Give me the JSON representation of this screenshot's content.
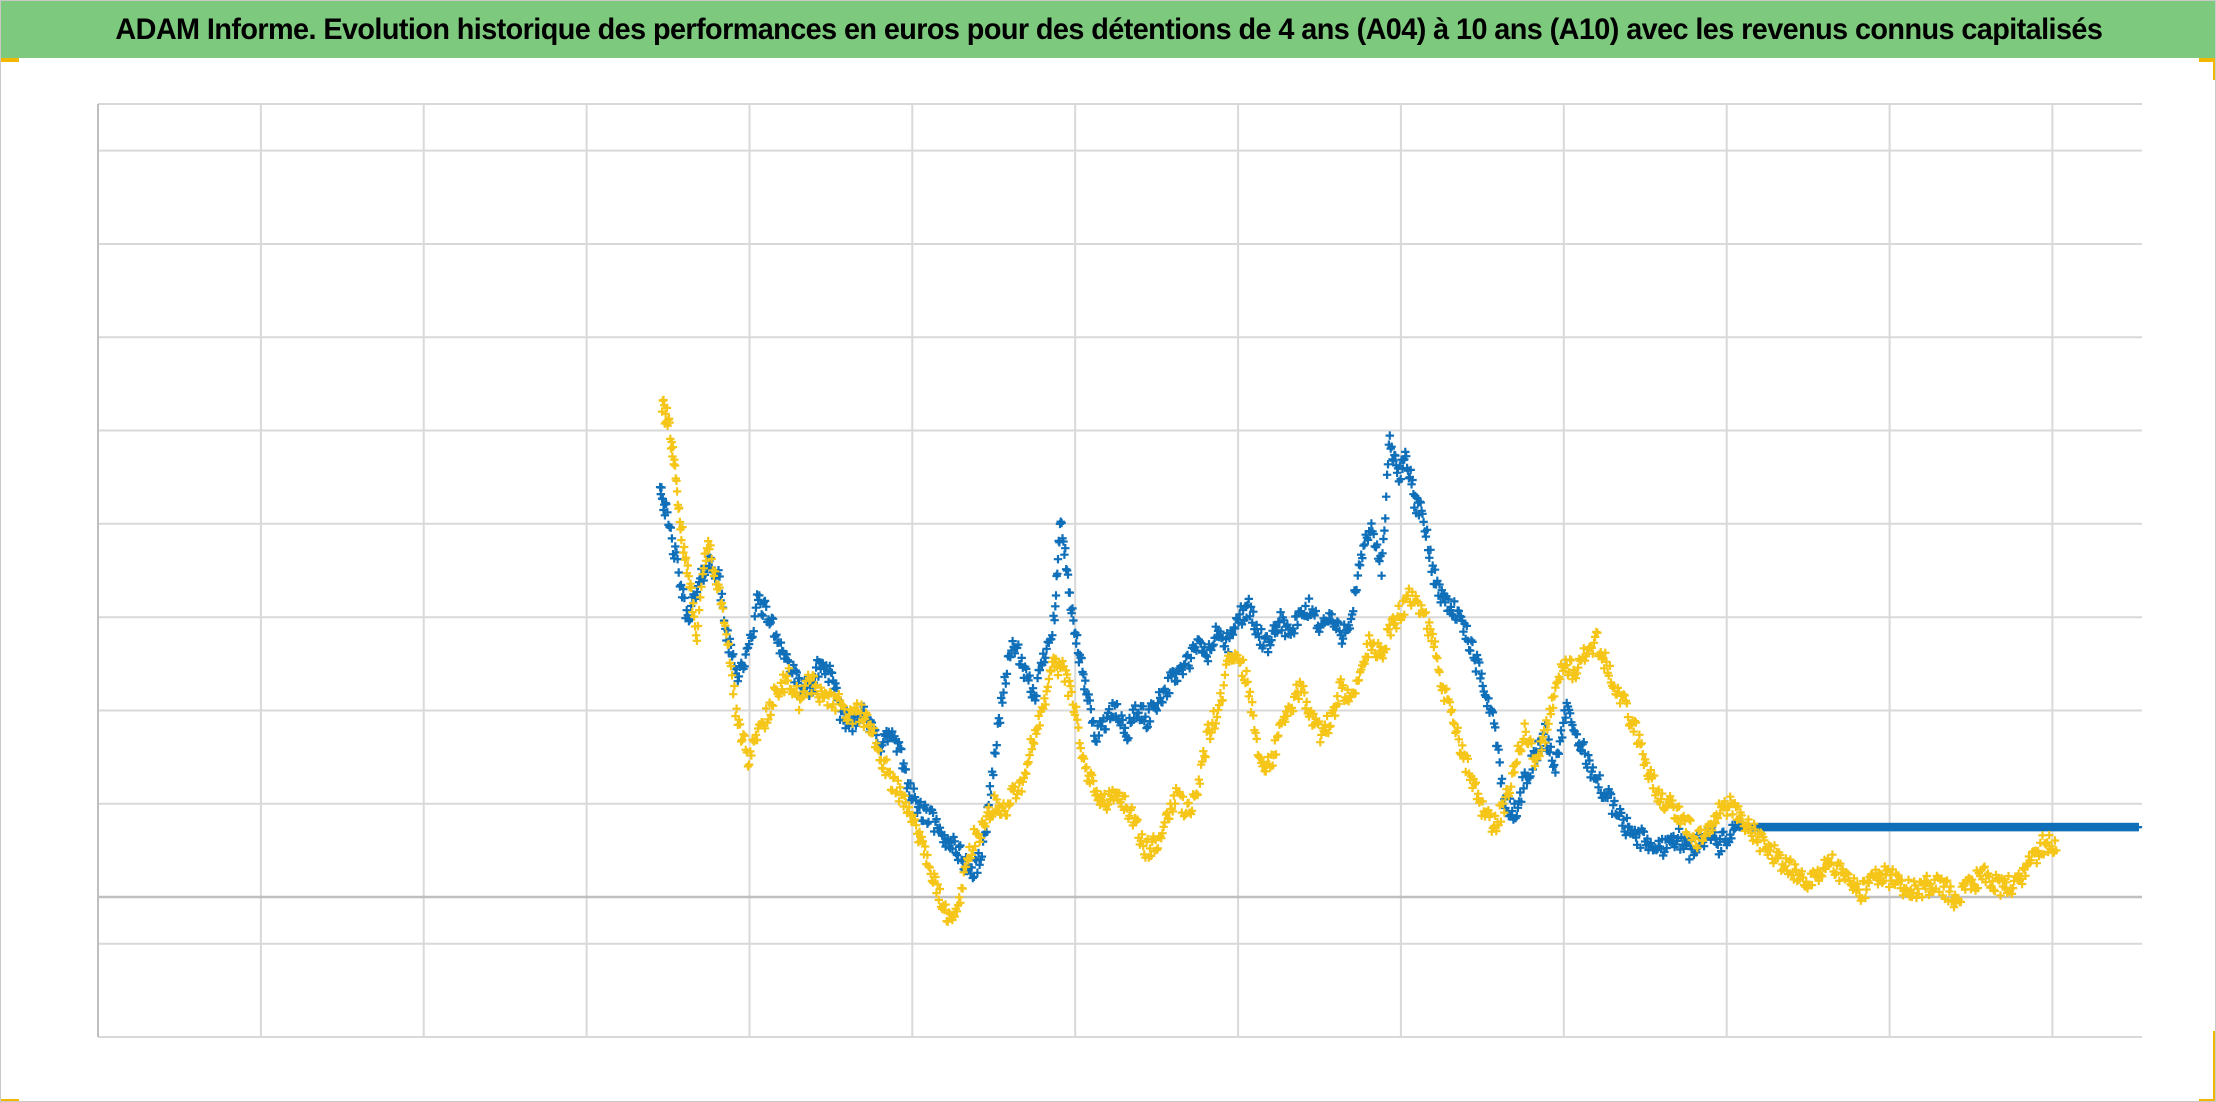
{
  "header": {
    "title": "ADAM Informe. Evolution historique des performances en euros pour des détentions de 4 ans (A04) à 10 ans (A10) avec les revenus connus capitalisés"
  },
  "colors": {
    "title_background": "#7dc97d",
    "accent_corners": "#f2b800",
    "grid": "#d9d9d9",
    "zero_line": "#bfbfbf",
    "series_a04": "#0f6fb8",
    "series_a10": "#f5c518"
  },
  "chart_data": {
    "type": "scatter",
    "title": "",
    "xlabel": "",
    "ylabel": "",
    "xlim": [
      0,
      100
    ],
    "ylim": [
      -0.3,
      1.7
    ],
    "grid": true,
    "marker": "plus",
    "tick_labels_visible": false,
    "series": [
      {
        "key": "a04",
        "color": "#0f6fb8",
        "points": [
          [
            27.5,
            0.89
          ],
          [
            27.8,
            0.82
          ],
          [
            28.3,
            0.72
          ],
          [
            28.8,
            0.6
          ],
          [
            29.3,
            0.65
          ],
          [
            29.8,
            0.72
          ],
          [
            30.3,
            0.7
          ],
          [
            30.8,
            0.55
          ],
          [
            31.3,
            0.48
          ],
          [
            31.8,
            0.52
          ],
          [
            32.3,
            0.64
          ],
          [
            32.8,
            0.6
          ],
          [
            33.3,
            0.55
          ],
          [
            33.8,
            0.5
          ],
          [
            34.3,
            0.45
          ],
          [
            34.8,
            0.44
          ],
          [
            35.3,
            0.5
          ],
          [
            35.8,
            0.48
          ],
          [
            36.3,
            0.4
          ],
          [
            36.8,
            0.37
          ],
          [
            37.3,
            0.4
          ],
          [
            37.8,
            0.36
          ],
          [
            38.3,
            0.33
          ],
          [
            38.8,
            0.35
          ],
          [
            39.3,
            0.3
          ],
          [
            39.8,
            0.22
          ],
          [
            40.3,
            0.18
          ],
          [
            40.8,
            0.17
          ],
          [
            41.3,
            0.12
          ],
          [
            41.8,
            0.12
          ],
          [
            42.3,
            0.08
          ],
          [
            42.8,
            0.05
          ],
          [
            43.3,
            0.1
          ],
          [
            43.8,
            0.28
          ],
          [
            44.3,
            0.45
          ],
          [
            44.8,
            0.55
          ],
          [
            45.3,
            0.48
          ],
          [
            45.8,
            0.43
          ],
          [
            46.3,
            0.52
          ],
          [
            46.8,
            0.6
          ],
          [
            47.1,
            0.82
          ],
          [
            47.5,
            0.65
          ],
          [
            47.9,
            0.54
          ],
          [
            48.3,
            0.45
          ],
          [
            48.8,
            0.35
          ],
          [
            49.3,
            0.38
          ],
          [
            49.8,
            0.4
          ],
          [
            50.3,
            0.35
          ],
          [
            50.8,
            0.4
          ],
          [
            51.3,
            0.38
          ],
          [
            51.8,
            0.42
          ],
          [
            52.3,
            0.45
          ],
          [
            52.8,
            0.48
          ],
          [
            53.3,
            0.5
          ],
          [
            53.8,
            0.54
          ],
          [
            54.3,
            0.52
          ],
          [
            54.8,
            0.57
          ],
          [
            55.3,
            0.54
          ],
          [
            55.8,
            0.6
          ],
          [
            56.3,
            0.62
          ],
          [
            56.8,
            0.56
          ],
          [
            57.3,
            0.53
          ],
          [
            57.8,
            0.6
          ],
          [
            58.3,
            0.56
          ],
          [
            58.8,
            0.6
          ],
          [
            59.3,
            0.62
          ],
          [
            59.8,
            0.58
          ],
          [
            60.3,
            0.6
          ],
          [
            60.8,
            0.56
          ],
          [
            61.3,
            0.6
          ],
          [
            61.8,
            0.72
          ],
          [
            62.3,
            0.8
          ],
          [
            62.8,
            0.7
          ],
          [
            63.2,
            0.98
          ],
          [
            63.6,
            0.9
          ],
          [
            64.0,
            0.95
          ],
          [
            64.4,
            0.85
          ],
          [
            64.8,
            0.82
          ],
          [
            65.3,
            0.7
          ],
          [
            65.8,
            0.64
          ],
          [
            66.3,
            0.62
          ],
          [
            66.8,
            0.58
          ],
          [
            67.3,
            0.52
          ],
          [
            67.8,
            0.45
          ],
          [
            68.3,
            0.38
          ],
          [
            68.8,
            0.2
          ],
          [
            69.3,
            0.18
          ],
          [
            69.8,
            0.25
          ],
          [
            70.3,
            0.3
          ],
          [
            70.8,
            0.35
          ],
          [
            71.3,
            0.28
          ],
          [
            71.8,
            0.4
          ],
          [
            72.3,
            0.35
          ],
          [
            72.8,
            0.3
          ],
          [
            73.3,
            0.25
          ],
          [
            73.8,
            0.22
          ],
          [
            74.3,
            0.18
          ],
          [
            74.8,
            0.15
          ],
          [
            75.3,
            0.13
          ],
          [
            75.8,
            0.12
          ],
          [
            76.3,
            0.1
          ],
          [
            76.8,
            0.12
          ],
          [
            77.3,
            0.13
          ],
          [
            77.8,
            0.1
          ],
          [
            78.3,
            0.12
          ],
          [
            78.8,
            0.14
          ],
          [
            79.3,
            0.11
          ],
          [
            79.8,
            0.13
          ],
          [
            80.3,
            0.15
          ],
          [
            80.8,
            0.15
          ],
          [
            81.3,
            0.15
          ],
          [
            81.8,
            0.15
          ],
          [
            82.3,
            0.15
          ],
          [
            82.8,
            0.15
          ],
          [
            83.3,
            0.15
          ],
          [
            83.8,
            0.15
          ],
          [
            84.3,
            0.15
          ],
          [
            84.8,
            0.15
          ],
          [
            85.3,
            0.15
          ],
          [
            85.8,
            0.15
          ],
          [
            86.3,
            0.15
          ],
          [
            86.8,
            0.15
          ],
          [
            87.3,
            0.15
          ],
          [
            87.8,
            0.15
          ],
          [
            88.3,
            0.15
          ],
          [
            88.8,
            0.15
          ],
          [
            89.3,
            0.15
          ],
          [
            89.8,
            0.15
          ],
          [
            90.3,
            0.15
          ],
          [
            90.8,
            0.15
          ],
          [
            91.3,
            0.15
          ],
          [
            91.8,
            0.15
          ],
          [
            92.3,
            0.15
          ],
          [
            92.8,
            0.15
          ],
          [
            93.3,
            0.15
          ],
          [
            93.8,
            0.15
          ],
          [
            94.3,
            0.15
          ],
          [
            94.8,
            0.15
          ],
          [
            95.3,
            0.15
          ],
          [
            95.8,
            0.15
          ],
          [
            96.3,
            0.15
          ],
          [
            96.8,
            0.15
          ],
          [
            97.3,
            0.15
          ],
          [
            97.8,
            0.15
          ],
          [
            98.3,
            0.15
          ],
          [
            98.8,
            0.15
          ],
          [
            99.3,
            0.15
          ],
          [
            99.8,
            0.15
          ]
        ]
      },
      {
        "key": "a10",
        "color": "#f5c518",
        "points": [
          [
            27.6,
            1.05
          ],
          [
            27.9,
            1.02
          ],
          [
            28.2,
            0.92
          ],
          [
            28.5,
            0.8
          ],
          [
            28.9,
            0.68
          ],
          [
            29.3,
            0.57
          ],
          [
            29.8,
            0.76
          ],
          [
            30.3,
            0.68
          ],
          [
            30.8,
            0.55
          ],
          [
            31.3,
            0.37
          ],
          [
            31.8,
            0.3
          ],
          [
            32.3,
            0.35
          ],
          [
            32.8,
            0.4
          ],
          [
            33.3,
            0.45
          ],
          [
            33.8,
            0.47
          ],
          [
            34.3,
            0.42
          ],
          [
            34.8,
            0.46
          ],
          [
            35.3,
            0.44
          ],
          [
            35.8,
            0.42
          ],
          [
            36.3,
            0.42
          ],
          [
            36.8,
            0.38
          ],
          [
            37.3,
            0.4
          ],
          [
            37.8,
            0.36
          ],
          [
            38.3,
            0.3
          ],
          [
            38.8,
            0.25
          ],
          [
            39.3,
            0.22
          ],
          [
            39.8,
            0.18
          ],
          [
            40.3,
            0.12
          ],
          [
            40.8,
            0.05
          ],
          [
            41.3,
            -0.02
          ],
          [
            41.8,
            -0.05
          ],
          [
            42.3,
            0.02
          ],
          [
            42.8,
            0.12
          ],
          [
            43.3,
            0.15
          ],
          [
            43.8,
            0.2
          ],
          [
            44.3,
            0.18
          ],
          [
            44.8,
            0.22
          ],
          [
            45.3,
            0.25
          ],
          [
            45.8,
            0.35
          ],
          [
            46.3,
            0.42
          ],
          [
            46.8,
            0.5
          ],
          [
            47.3,
            0.48
          ],
          [
            47.8,
            0.4
          ],
          [
            48.3,
            0.28
          ],
          [
            48.8,
            0.22
          ],
          [
            49.3,
            0.2
          ],
          [
            49.8,
            0.22
          ],
          [
            50.3,
            0.2
          ],
          [
            50.8,
            0.15
          ],
          [
            51.3,
            0.1
          ],
          [
            51.8,
            0.12
          ],
          [
            52.3,
            0.18
          ],
          [
            52.8,
            0.22
          ],
          [
            53.3,
            0.18
          ],
          [
            53.8,
            0.22
          ],
          [
            54.3,
            0.35
          ],
          [
            54.8,
            0.4
          ],
          [
            55.3,
            0.5
          ],
          [
            55.8,
            0.52
          ],
          [
            56.3,
            0.45
          ],
          [
            56.8,
            0.3
          ],
          [
            57.3,
            0.28
          ],
          [
            57.8,
            0.35
          ],
          [
            58.3,
            0.4
          ],
          [
            58.8,
            0.45
          ],
          [
            59.3,
            0.4
          ],
          [
            59.8,
            0.35
          ],
          [
            60.3,
            0.38
          ],
          [
            60.8,
            0.45
          ],
          [
            61.3,
            0.42
          ],
          [
            61.8,
            0.5
          ],
          [
            62.3,
            0.55
          ],
          [
            62.8,
            0.52
          ],
          [
            63.3,
            0.58
          ],
          [
            63.8,
            0.62
          ],
          [
            64.3,
            0.65
          ],
          [
            64.8,
            0.62
          ],
          [
            65.3,
            0.55
          ],
          [
            65.8,
            0.45
          ],
          [
            66.3,
            0.38
          ],
          [
            66.8,
            0.3
          ],
          [
            67.3,
            0.25
          ],
          [
            67.8,
            0.18
          ],
          [
            68.3,
            0.15
          ],
          [
            68.8,
            0.2
          ],
          [
            69.3,
            0.28
          ],
          [
            69.8,
            0.35
          ],
          [
            70.3,
            0.3
          ],
          [
            70.8,
            0.35
          ],
          [
            71.3,
            0.45
          ],
          [
            71.8,
            0.5
          ],
          [
            72.3,
            0.48
          ],
          [
            72.8,
            0.52
          ],
          [
            73.3,
            0.55
          ],
          [
            73.8,
            0.5
          ],
          [
            74.3,
            0.45
          ],
          [
            74.8,
            0.4
          ],
          [
            75.3,
            0.35
          ],
          [
            75.8,
            0.28
          ],
          [
            76.3,
            0.22
          ],
          [
            76.8,
            0.2
          ],
          [
            77.3,
            0.18
          ],
          [
            77.8,
            0.15
          ],
          [
            78.3,
            0.12
          ],
          [
            78.8,
            0.15
          ],
          [
            79.3,
            0.18
          ],
          [
            79.8,
            0.2
          ],
          [
            80.3,
            0.18
          ],
          [
            80.8,
            0.15
          ],
          [
            81.3,
            0.12
          ],
          [
            81.8,
            0.1
          ],
          [
            82.3,
            0.08
          ],
          [
            82.8,
            0.06
          ],
          [
            83.3,
            0.05
          ],
          [
            83.8,
            0.03
          ],
          [
            84.3,
            0.05
          ],
          [
            84.8,
            0.08
          ],
          [
            85.3,
            0.05
          ],
          [
            85.8,
            0.03
          ],
          [
            86.3,
            0.01
          ],
          [
            86.8,
            0.03
          ],
          [
            87.3,
            0.05
          ],
          [
            87.8,
            0.04
          ],
          [
            88.3,
            0.02
          ],
          [
            88.8,
            0.01
          ],
          [
            89.3,
            0.02
          ],
          [
            89.8,
            0.03
          ],
          [
            90.3,
            0.02
          ],
          [
            90.8,
            0.0
          ],
          [
            91.3,
            0.01
          ],
          [
            91.8,
            0.03
          ],
          [
            92.3,
            0.05
          ],
          [
            92.8,
            0.03
          ],
          [
            93.3,
            0.02
          ],
          [
            93.8,
            0.03
          ],
          [
            94.3,
            0.06
          ],
          [
            94.8,
            0.09
          ],
          [
            95.3,
            0.12
          ],
          [
            95.8,
            0.1
          ]
        ]
      }
    ]
  }
}
